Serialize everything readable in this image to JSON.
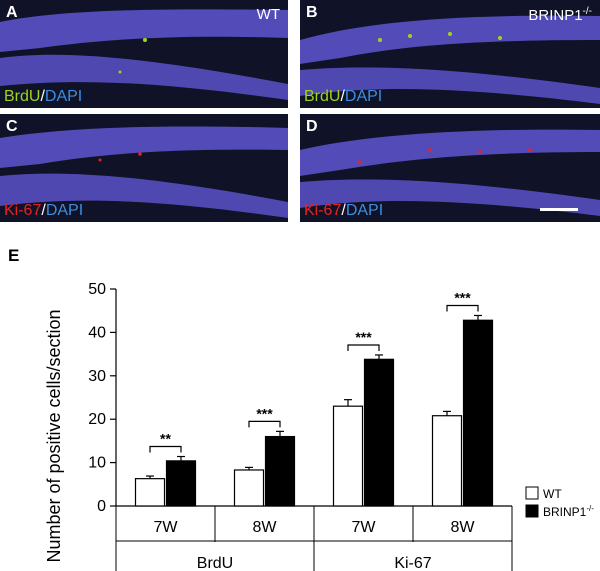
{
  "panels": [
    {
      "letter": "A",
      "genotype": "WT",
      "genotype_sup": "",
      "stain1": "BrdU",
      "slash": "/",
      "stain2": "DAPI"
    },
    {
      "letter": "B",
      "genotype": "BRINP1",
      "genotype_sup": "-/-",
      "stain1": "BrdU",
      "slash": "/",
      "stain2": "DAPI"
    },
    {
      "letter": "C",
      "genotype": "",
      "genotype_sup": "",
      "stain1": "Ki-67",
      "slash": "/",
      "stain2": "DAPI"
    },
    {
      "letter": "D",
      "genotype": "",
      "genotype_sup": "",
      "stain1": "Ki-67",
      "slash": "/",
      "stain2": "DAPI"
    }
  ],
  "colors": {
    "brdu": "#9ed41e",
    "dapi": "#3d8ee0",
    "ki67": "#e8231e",
    "tissue": "#6a5fd8",
    "background": "#101228"
  },
  "chart_data": {
    "label": "E",
    "type": "bar",
    "ylabel": "Number of positive cells/section",
    "ylim": [
      0,
      50
    ],
    "yticks": [
      0,
      10,
      20,
      30,
      40,
      50
    ],
    "groups": [
      "BrdU",
      "Ki-67"
    ],
    "categories": [
      "7W",
      "8W",
      "7W",
      "8W"
    ],
    "category_group": [
      0,
      0,
      1,
      1
    ],
    "series": [
      {
        "name": "WT",
        "color": "#ffffff",
        "values": [
          6.3,
          8.3,
          23.0,
          20.8
        ],
        "errors": [
          0.6,
          0.6,
          1.5,
          1.0
        ]
      },
      {
        "name": "BRINP1",
        "name_sup": "-/-",
        "color": "#000000",
        "values": [
          10.4,
          16.0,
          33.8,
          42.8
        ],
        "errors": [
          1.0,
          1.2,
          1.0,
          1.1
        ]
      }
    ],
    "significance": [
      "**",
      "***",
      "***",
      "***"
    ],
    "legend_position": "right"
  }
}
